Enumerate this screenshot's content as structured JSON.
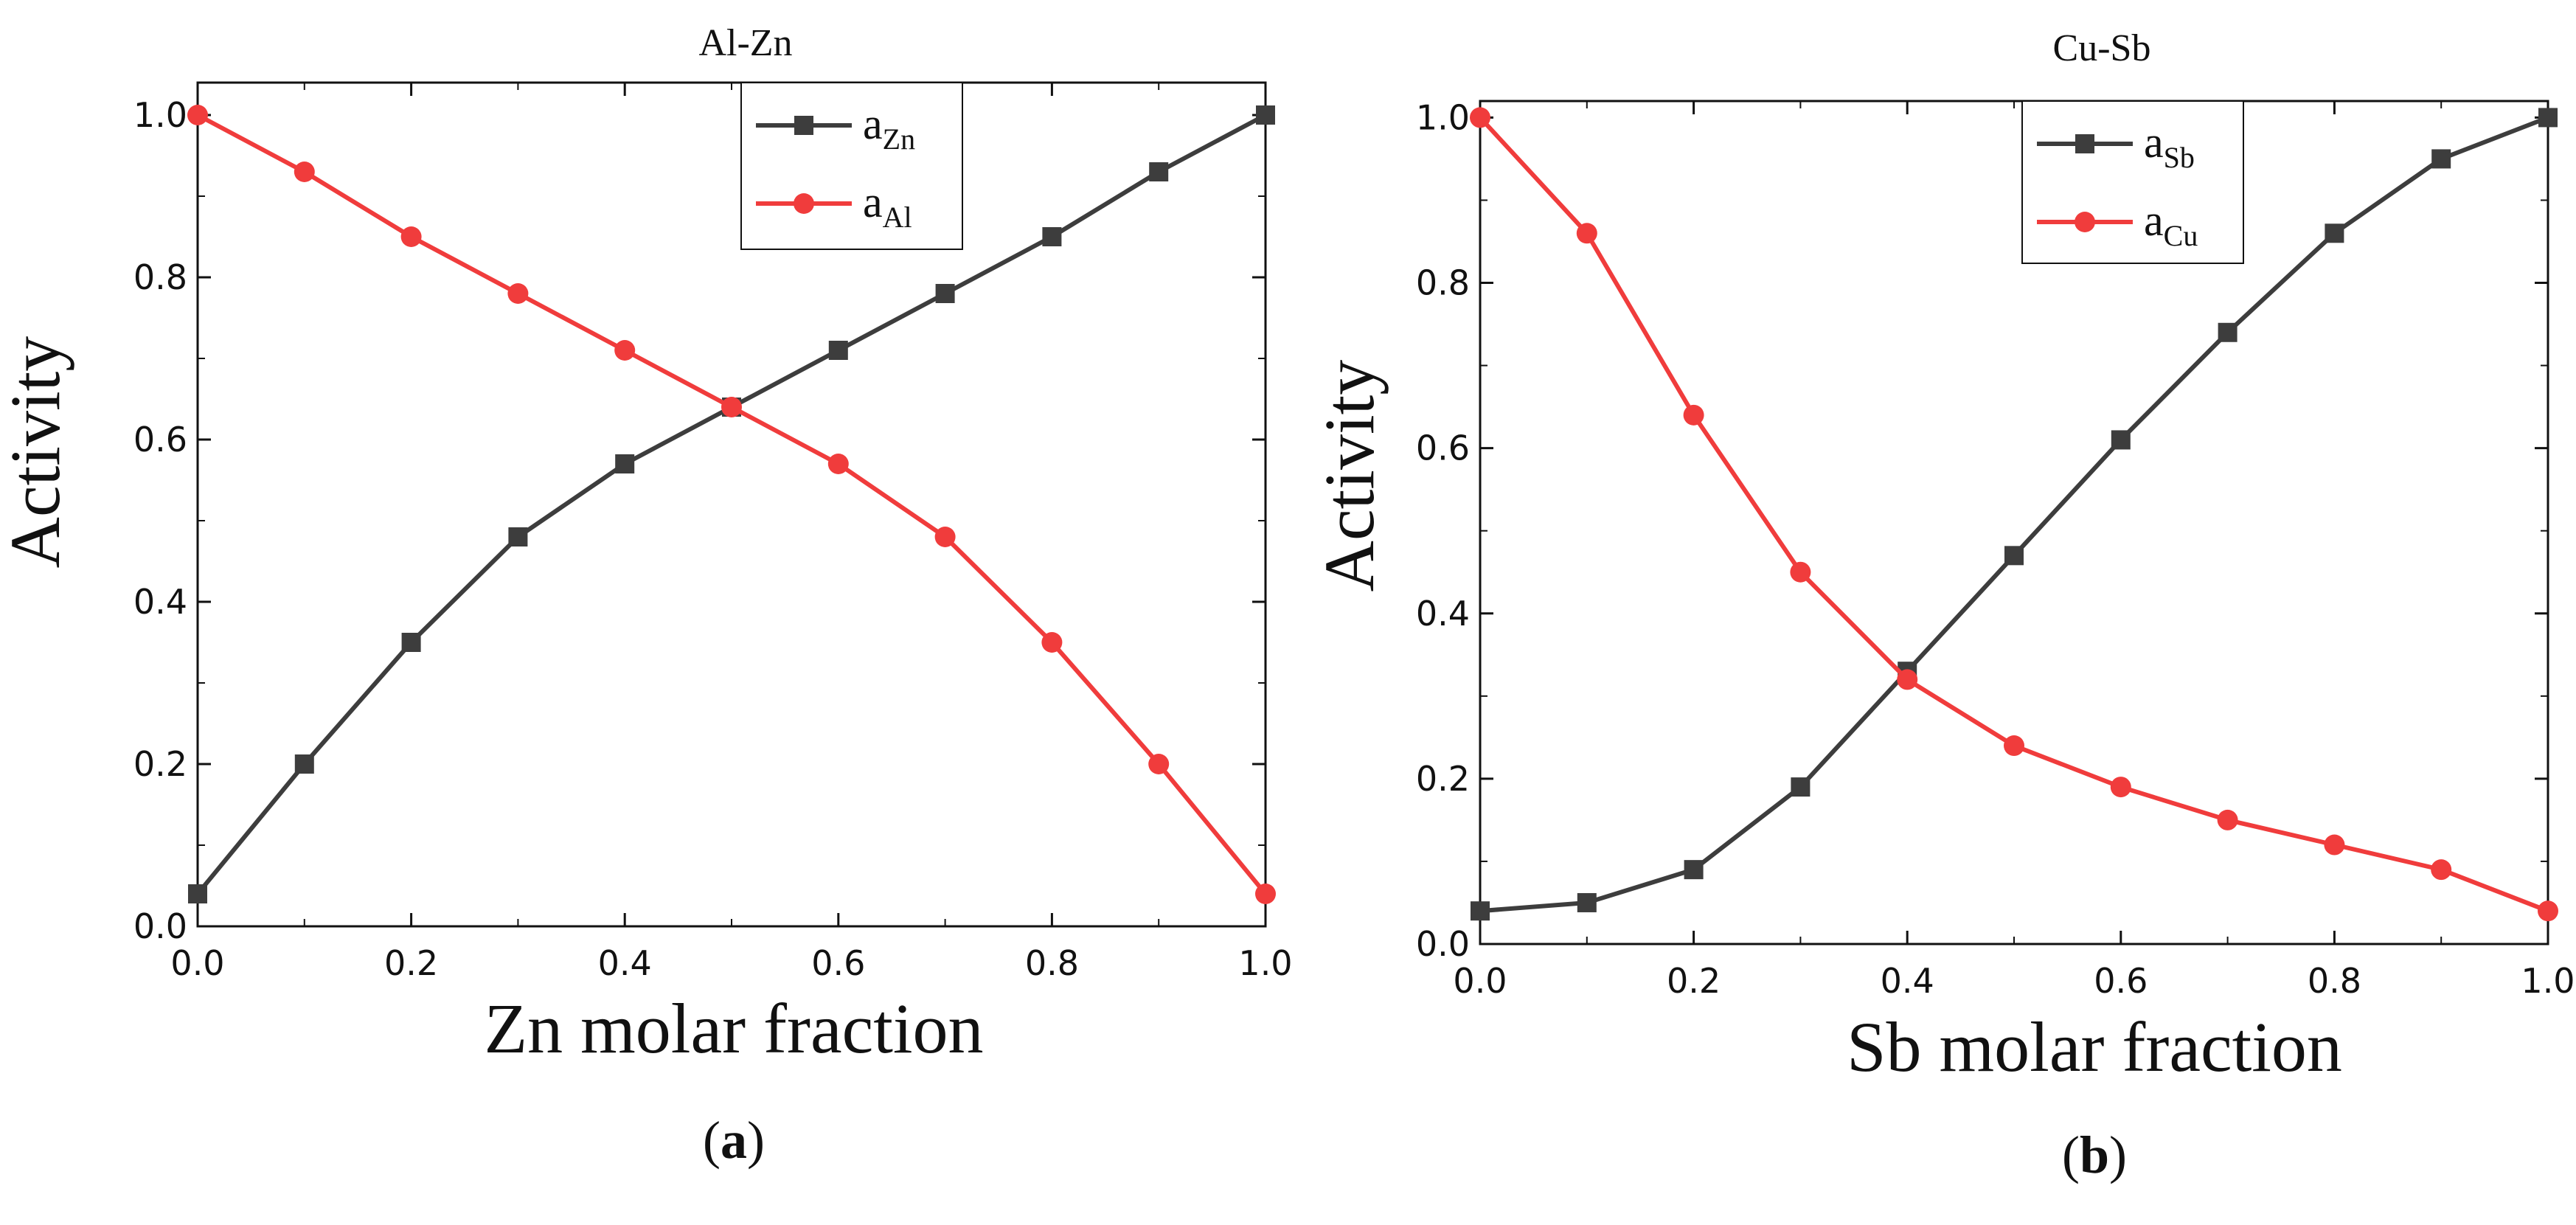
{
  "chart_data": [
    {
      "type": "line",
      "panel_label": "a",
      "title": "Al-Zn",
      "xlabel": "Zn molar fraction",
      "ylabel": "Activity",
      "xlim": [
        0.0,
        1.0
      ],
      "ylim": [
        0.0,
        1.04
      ],
      "xticks": [
        "0.0",
        "0.2",
        "0.4",
        "0.6",
        "0.8",
        "1.0"
      ],
      "yticks": [
        "0.0",
        "0.2",
        "0.4",
        "0.6",
        "0.8",
        "1.0"
      ],
      "x": [
        0.0,
        0.1,
        0.2,
        0.3,
        0.4,
        0.5,
        0.6,
        0.7,
        0.8,
        0.9,
        1.0
      ],
      "series": [
        {
          "name": "a",
          "subscript": "Zn",
          "marker": "square",
          "color": "#3d3d3d",
          "values": [
            0.04,
            0.2,
            0.35,
            0.48,
            0.57,
            0.64,
            0.71,
            0.78,
            0.85,
            0.93,
            1.0
          ]
        },
        {
          "name": "a",
          "subscript": "Al",
          "marker": "circle",
          "color": "#f03c3c",
          "values": [
            1.0,
            0.93,
            0.85,
            0.78,
            0.71,
            0.64,
            0.57,
            0.48,
            0.35,
            0.2,
            0.04
          ]
        }
      ],
      "legend_position": "top-right"
    },
    {
      "type": "line",
      "panel_label": "b",
      "title": "Cu-Sb",
      "xlabel": "Sb molar fraction",
      "ylabel": "Activity",
      "xlim": [
        0.0,
        1.0
      ],
      "ylim": [
        0.0,
        1.02
      ],
      "xticks": [
        "0.0",
        "0.2",
        "0.4",
        "0.6",
        "0.8",
        "1.0"
      ],
      "yticks": [
        "0.0",
        "0.2",
        "0.4",
        "0.6",
        "0.8",
        "1.0"
      ],
      "x": [
        0.0,
        0.1,
        0.2,
        0.3,
        0.4,
        0.5,
        0.6,
        0.7,
        0.8,
        0.9,
        1.0
      ],
      "series": [
        {
          "name": "a",
          "subscript": "Sb",
          "marker": "square",
          "color": "#3d3d3d",
          "values": [
            0.04,
            0.05,
            0.09,
            0.19,
            0.33,
            0.47,
            0.61,
            0.74,
            0.86,
            0.95,
            1.0
          ]
        },
        {
          "name": "a",
          "subscript": "Cu",
          "marker": "circle",
          "color": "#f03c3c",
          "values": [
            1.0,
            0.86,
            0.64,
            0.45,
            0.32,
            0.24,
            0.19,
            0.15,
            0.12,
            0.09,
            0.04
          ]
        }
      ],
      "legend_position": "top-right"
    }
  ]
}
